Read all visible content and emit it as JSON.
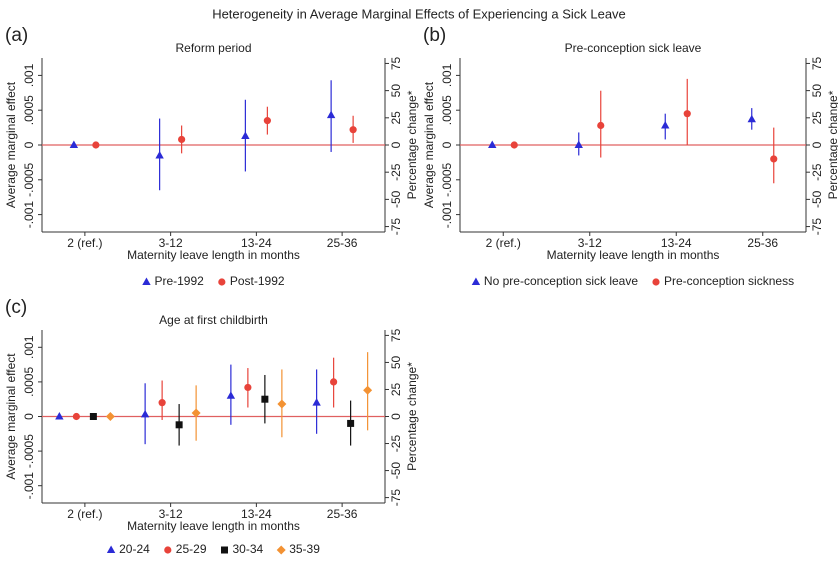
{
  "title": "Heterogeneity in Average Marginal Effects of Experiencing a Sick Leave",
  "chart_data": [
    {
      "type": "errorbar",
      "label": "(a)",
      "title": "Reform period",
      "xlabel": "Maternity leave length in months",
      "ylabel": "Average marginal effect",
      "y2label": "Percentage change*",
      "categories": [
        "2 (ref.)",
        "3-12",
        "13-24",
        "25-36"
      ],
      "ylim": [
        -0.00125,
        0.00125
      ],
      "yticks": [
        {
          "value": -0.001,
          "label": "-.001"
        },
        {
          "value": -0.0005,
          "label": "-.0005"
        },
        0,
        {
          "value": 0.0005,
          "label": ".0005"
        },
        {
          "value": 0.001,
          "label": ".001"
        }
      ],
      "y2lim": [
        -80,
        80
      ],
      "y2ticks": [
        -75,
        -50,
        -25,
        0,
        25,
        50,
        75
      ],
      "hline": 0,
      "hline_color": "#e06060",
      "series": [
        {
          "name": "Pre-1992",
          "color": "#2b2bd6",
          "marker": "triangle",
          "values": [
            0,
            -0.00015,
            0.00013,
            0.00043
          ],
          "lower": [
            0,
            -0.00065,
            -0.00038,
            -0.0001
          ],
          "upper": [
            0,
            0.00038,
            0.00065,
            0.00093
          ]
        },
        {
          "name": "Post-1992",
          "color": "#e8433a",
          "marker": "circle",
          "values": [
            0,
            8e-05,
            0.00035,
            0.00022
          ],
          "lower": [
            0,
            -0.00012,
            0.00015,
            3e-05
          ],
          "upper": [
            0,
            0.00028,
            0.00055,
            0.00042
          ]
        }
      ]
    },
    {
      "type": "errorbar",
      "label": "(b)",
      "title": "Pre-conception sick leave",
      "xlabel": "Maternity leave length in months",
      "ylabel": "Average marginal effect",
      "y2label": "Percentage change*",
      "categories": [
        "2 (ref.)",
        "3-12",
        "13-24",
        "25-36"
      ],
      "ylim": [
        -0.00125,
        0.00125
      ],
      "yticks": [
        {
          "value": -0.001,
          "label": "-.001"
        },
        {
          "value": -0.0005,
          "label": "-.0005"
        },
        0,
        {
          "value": 0.0005,
          "label": ".0005"
        },
        {
          "value": 0.001,
          "label": ".001"
        }
      ],
      "y2lim": [
        -80,
        80
      ],
      "y2ticks": [
        -75,
        -50,
        -25,
        0,
        25,
        50,
        75
      ],
      "hline": 0,
      "hline_color": "#e06060",
      "series": [
        {
          "name": "No pre-conception sick leave",
          "color": "#2b2bd6",
          "marker": "triangle",
          "values": [
            0,
            0,
            0.00028,
            0.00037
          ],
          "lower": [
            0,
            -0.00015,
            8e-05,
            0.00022
          ],
          "upper": [
            0,
            0.00018,
            0.00045,
            0.00053
          ]
        },
        {
          "name": "Pre-conception sickness",
          "color": "#e8433a",
          "marker": "circle",
          "values": [
            0,
            0.00028,
            0.00045,
            -0.0002
          ],
          "lower": [
            0,
            -0.00018,
            0,
            -0.00055
          ],
          "upper": [
            0,
            0.00078,
            0.00095,
            0.00025
          ]
        }
      ]
    },
    {
      "type": "errorbar",
      "label": "(c)",
      "title": "Age at first childbirth",
      "xlabel": "Maternity leave length in months",
      "ylabel": "Average marginal effect",
      "y2label": "Percentage change*",
      "categories": [
        "2 (ref.)",
        "3-12",
        "13-24",
        "25-36"
      ],
      "ylim": [
        -0.00125,
        0.00125
      ],
      "yticks": [
        {
          "value": -0.001,
          "label": "-.001"
        },
        {
          "value": -0.0005,
          "label": "-.0005"
        },
        0,
        {
          "value": 0.0005,
          "label": ".0005"
        },
        {
          "value": 0.001,
          "label": ".001"
        }
      ],
      "y2lim": [
        -80,
        80
      ],
      "y2ticks": [
        -75,
        -50,
        -25,
        0,
        25,
        50,
        75
      ],
      "hline": 0,
      "hline_color": "#e06060",
      "series": [
        {
          "name": "20-24",
          "color": "#2b2bd6",
          "marker": "triangle",
          "values": [
            0,
            3e-05,
            0.0003,
            0.0002
          ],
          "lower": [
            0,
            -0.0004,
            -0.00012,
            -0.00025
          ],
          "upper": [
            0,
            0.00048,
            0.00075,
            0.00068
          ]
        },
        {
          "name": "25-29",
          "color": "#e8433a",
          "marker": "circle",
          "values": [
            0,
            0.0002,
            0.00042,
            0.0005
          ],
          "lower": [
            0,
            -5e-05,
            0.00013,
            0.00013
          ],
          "upper": [
            0,
            0.00052,
            0.0007,
            0.00085
          ]
        },
        {
          "name": "30-34",
          "color": "#111111",
          "marker": "square",
          "values": [
            0,
            -0.00012,
            0.00025,
            -0.0001
          ],
          "lower": [
            0,
            -0.00042,
            -0.0001,
            -0.00042
          ],
          "upper": [
            0,
            0.00018,
            0.0006,
            0.00023
          ]
        },
        {
          "name": "35-39",
          "color": "#f39233",
          "marker": "diamond",
          "values": [
            0,
            5e-05,
            0.00018,
            0.00038
          ],
          "lower": [
            0,
            -0.00035,
            -0.0003,
            -0.0002
          ],
          "upper": [
            0,
            0.00045,
            0.00068,
            0.00093
          ]
        }
      ]
    }
  ]
}
